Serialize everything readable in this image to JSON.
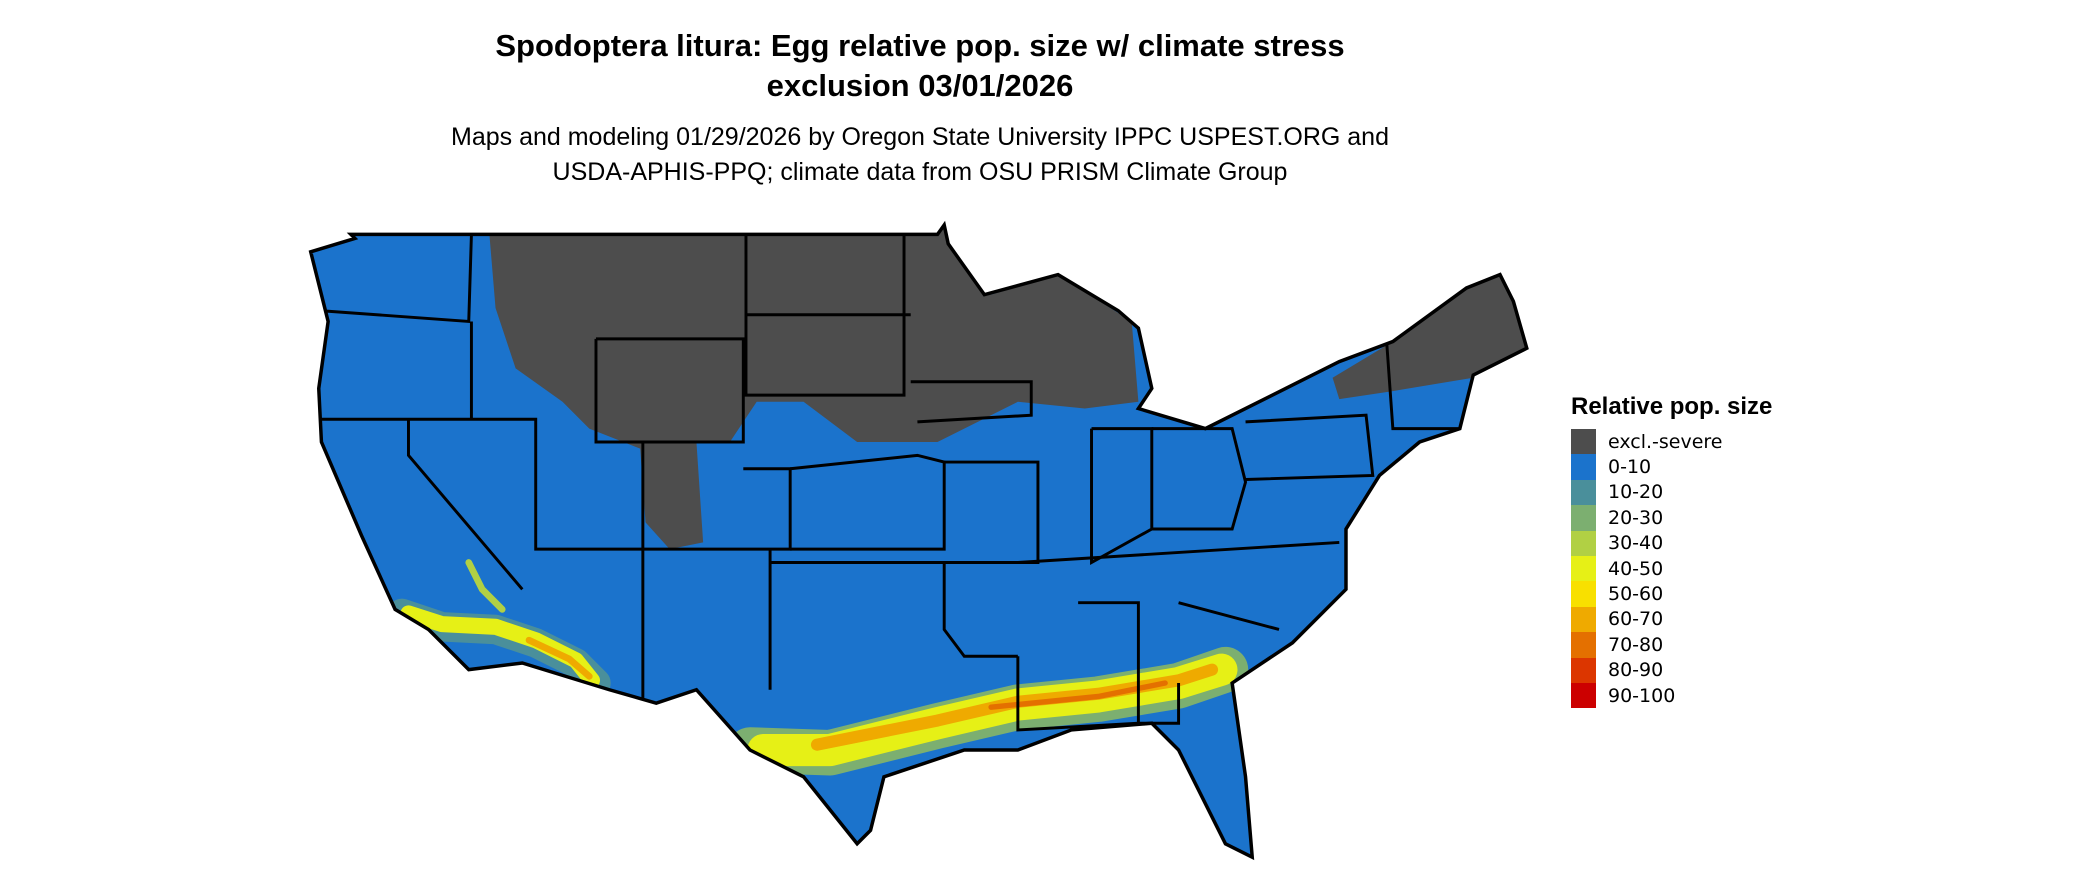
{
  "title": {
    "line1": "Spodoptera litura: Egg relative pop. size w/ climate stress",
    "line2": "exclusion 03/01/2026"
  },
  "subtitle": {
    "line1": "Maps and modeling 01/29/2026 by Oregon State University IPPC USPEST.ORG and",
    "line2": "USDA-APHIS-PPQ; climate data from OSU PRISM Climate Group"
  },
  "map": {
    "region": "Contiguous United States",
    "outline_color": "#000000"
  },
  "legend": {
    "title": "Relative pop. size",
    "placement": "right",
    "items": [
      {
        "label": "excl.-severe",
        "color": "#4d4d4d"
      },
      {
        "label": "0-10",
        "color": "#1b73cc"
      },
      {
        "label": "10-20",
        "color": "#4a8f9b"
      },
      {
        "label": "20-30",
        "color": "#7caf70"
      },
      {
        "label": "30-40",
        "color": "#b1d044"
      },
      {
        "label": "40-50",
        "color": "#e6f016"
      },
      {
        "label": "50-60",
        "color": "#f8e000"
      },
      {
        "label": "60-70",
        "color": "#efaa00"
      },
      {
        "label": "70-80",
        "color": "#e47000"
      },
      {
        "label": "80-90",
        "color": "#dc3600"
      },
      {
        "label": "90-100",
        "color": "#cc0000"
      }
    ]
  }
}
